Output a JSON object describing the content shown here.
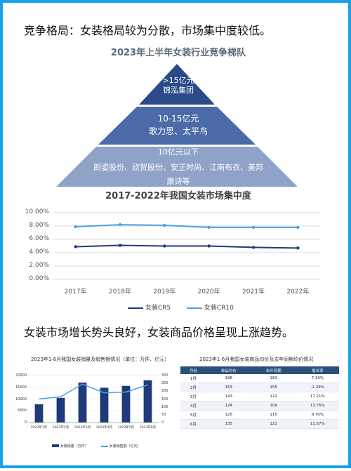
{
  "headings": {
    "top": "竞争格局：女装格局较为分散，市场集中度较低。",
    "bottom": "女装市场增长势头良好，女装商品价格呈现上涨趋势。"
  },
  "pyramid": {
    "title": "2023年上半年女装行业竞争梯队",
    "tiers": [
      {
        "range": ">15亿元",
        "brands": "锦泓集团"
      },
      {
        "range": "10-15亿元",
        "brands": "歌力思、太平鸟"
      },
      {
        "range": "10亿元以下",
        "brands": "朗姿股份、欣贺股份、安正时尚、江南布衣、美邦",
        "brands2": "康诗等"
      }
    ]
  },
  "watermark": "智研咨询",
  "chart_data": [
    {
      "type": "line",
      "title": "2017-2022年我国女装市场集中度",
      "x": [
        "2017年",
        "2018年",
        "2019年",
        "2020年",
        "2021年",
        "2022年"
      ],
      "ylim": [
        0,
        10
      ],
      "yticks": [
        "0.00%",
        "2.00%",
        "4.00%",
        "6.00%",
        "8.00%",
        "10.00%"
      ],
      "series": [
        {
          "name": "女装CR5",
          "values": [
            4.9,
            5.1,
            5.0,
            5.0,
            4.8,
            4.7
          ],
          "color": "#1f3a7a"
        },
        {
          "name": "女装CR10",
          "values": [
            7.9,
            8.2,
            8.1,
            7.8,
            7.8,
            7.8
          ],
          "color": "#4aa3df"
        }
      ],
      "grid": true,
      "legend": "bottom"
    },
    {
      "type": "bar",
      "title": "2023年1-6月我国女装销量及销售额情况（单位：万件、亿元）",
      "categories": [
        "2023年1月",
        "2023年2月",
        "2023年3月",
        "2023年4月",
        "2023年5月",
        "2023年6月"
      ],
      "ylim": [
        0,
        20000
      ],
      "y2lim": [
        0,
        300
      ],
      "yticks": [
        "0",
        "5000",
        "10000",
        "15000",
        "20000"
      ],
      "y2ticks": [
        "0",
        "50",
        "100",
        "150",
        "200",
        "250",
        "300"
      ],
      "series": [
        {
          "name": "女装销量（万件）",
          "values": [
            7800,
            10500,
            17000,
            14800,
            15600,
            18000
          ],
          "color": "#1f3a7a"
        },
        {
          "name": "女装销售额（亿元）",
          "values": [
            150,
            165,
            245,
            190,
            195,
            240
          ],
          "color": "#4aa3df"
        }
      ],
      "legend": "bottom"
    },
    {
      "type": "table",
      "title": "2023年1-6月我国女装商品均价及去年同期均价情况",
      "columns": [
        "月份",
        "单品均价",
        "去年同期",
        "增长率"
      ],
      "rows": [
        [
          "1月",
          "196",
          "183",
          "7.10%"
        ],
        [
          "2月",
          "153",
          "155",
          "-1.29%"
        ],
        [
          "3月",
          "143",
          "122",
          "17.21%"
        ],
        [
          "4月",
          "124",
          "109",
          "13.76%"
        ],
        [
          "5月",
          "125",
          "115",
          "8.70%"
        ],
        [
          "6月",
          "135",
          "121",
          "11.57%"
        ]
      ]
    }
  ]
}
